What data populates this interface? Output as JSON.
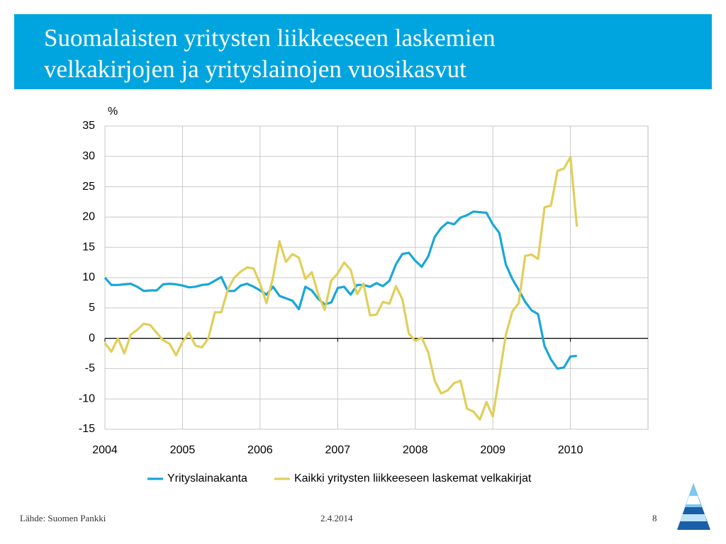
{
  "header": {
    "title": [
      "Suomalaisten yritysten liikkeeseen laskemien",
      "velkakirjojen ja yrityslainojen vuosikasvut"
    ]
  },
  "chart_data": {
    "type": "line",
    "ylabel": "%",
    "x": [
      2004,
      2004.083,
      2004.167,
      2004.25,
      2004.333,
      2004.417,
      2004.5,
      2004.583,
      2004.667,
      2004.75,
      2004.833,
      2004.917,
      2005,
      2005.083,
      2005.167,
      2005.25,
      2005.333,
      2005.417,
      2005.5,
      2005.583,
      2005.667,
      2005.75,
      2005.833,
      2005.917,
      2006,
      2006.083,
      2006.167,
      2006.25,
      2006.333,
      2006.417,
      2006.5,
      2006.583,
      2006.667,
      2006.75,
      2006.833,
      2006.917,
      2007,
      2007.083,
      2007.167,
      2007.25,
      2007.333,
      2007.417,
      2007.5,
      2007.583,
      2007.667,
      2007.75,
      2007.833,
      2007.917,
      2008,
      2008.083,
      2008.167,
      2008.25,
      2008.333,
      2008.417,
      2008.5,
      2008.583,
      2008.667,
      2008.75,
      2008.833,
      2008.917,
      2009,
      2009.083,
      2009.167,
      2009.25,
      2009.333,
      2009.417,
      2009.5,
      2009.583,
      2009.667,
      2009.75,
      2009.833,
      2009.917,
      2010,
      2010.083
    ],
    "series": [
      {
        "name": "Yrityslainakanta",
        "color": "#1aa6d8",
        "values": [
          10,
          8.8,
          8.8,
          8.9,
          9.0,
          8.5,
          7.8,
          7.9,
          7.9,
          8.9,
          9.0,
          8.9,
          8.7,
          8.4,
          8.5,
          8.8,
          8.9,
          9.5,
          10.1,
          7.8,
          7.8,
          8.7,
          9.0,
          8.5,
          7.9,
          7.2,
          8.5,
          7.0,
          6.6,
          6.2,
          4.8,
          8.5,
          7.9,
          6.5,
          5.6,
          5.9,
          8.3,
          8.5,
          7.2,
          8.8,
          8.8,
          8.5,
          9.1,
          8.6,
          9.5,
          12.2,
          13.9,
          14.1,
          12.8,
          11.8,
          13.5,
          16.7,
          18.2,
          19.1,
          18.8,
          19.9,
          20.3,
          20.9,
          20.8,
          20.7,
          18.8,
          17.4,
          12.2,
          9.8,
          8.0,
          6.0,
          4.6,
          4.0,
          -1.3,
          -3.5,
          -5.0,
          -4.8,
          -3.0,
          -2.9
        ]
      },
      {
        "name": "Kaikki yritysten liikkeeseen laskemat velkakirjat",
        "color": "#e0cf5a",
        "values": [
          -0.8,
          -2.2,
          0.0,
          -2.5,
          0.6,
          1.4,
          2.4,
          2.2,
          0.9,
          -0.3,
          -0.9,
          -2.8,
          -0.6,
          0.9,
          -1.2,
          -1.5,
          0.0,
          4.3,
          4.3,
          8.0,
          10.0,
          11.0,
          11.7,
          11.5,
          9.0,
          5.8,
          10.0,
          16.0,
          12.6,
          13.9,
          13.3,
          9.8,
          10.9,
          7.2,
          4.7,
          9.5,
          10.7,
          12.5,
          11.3,
          7.3,
          9.0,
          3.8,
          3.9,
          6.0,
          5.7,
          8.6,
          6.5,
          0.8,
          -0.4,
          0.1,
          -2.3,
          -7.0,
          -9.1,
          -8.6,
          -7.4,
          -7.0,
          -11.6,
          -12.1,
          -13.4,
          -10.5,
          -12.9,
          -6.3,
          0.5,
          4.4,
          5.8,
          13.6,
          13.8,
          13.1,
          21.6,
          21.9,
          27.6,
          28.0,
          29.9,
          18.4
        ]
      }
    ],
    "xlim": [
      2004,
      2011
    ],
    "xticks": [
      2004,
      2005,
      2006,
      2007,
      2008,
      2009,
      2010
    ],
    "ylim": [
      -15,
      35
    ],
    "yticks": [
      -15,
      -10,
      -5,
      0,
      5,
      10,
      15,
      20,
      25,
      30,
      35
    ],
    "grid": true,
    "legend": "bottom"
  },
  "footer": {
    "source": "Lähde: Suomen Pankki",
    "date": "2.4.2014",
    "page": "8"
  }
}
